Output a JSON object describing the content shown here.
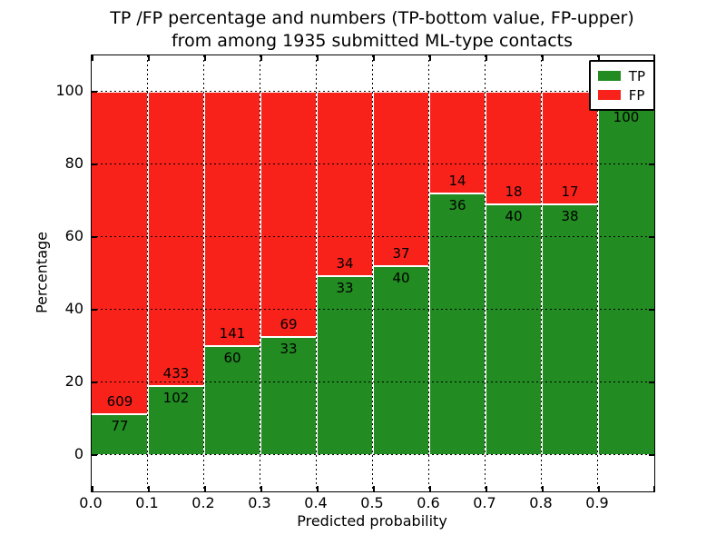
{
  "chart_data": {
    "type": "bar",
    "stacked": true,
    "normalized": "percent",
    "title_line1": "TP /FP percentage and numbers (TP-bottom value, FP-upper)",
    "title_line2": "from among 1935 submitted ML-type contacts",
    "title": "TP /FP percentage and numbers (TP-bottom value, FP-upper) from among 1935 submitted ML-type contacts",
    "total_contacts": 1935,
    "xlabel": "Predicted probability",
    "ylabel": "Percentage",
    "xlim": [
      0.0,
      1.0
    ],
    "ylim": [
      -10,
      110
    ],
    "xticks": [
      "0.0",
      "0.1",
      "0.2",
      "0.3",
      "0.4",
      "0.5",
      "0.6",
      "0.7",
      "0.8",
      "0.9"
    ],
    "yticks": [
      0,
      20,
      40,
      60,
      80,
      100
    ],
    "grid": true,
    "grid_style": "dotted",
    "legend": {
      "position": "upper right",
      "entries": [
        {
          "label": "TP",
          "color": "#228b22"
        },
        {
          "label": "FP",
          "color": "#f8221b"
        }
      ]
    },
    "colors": {
      "tp": "#228b22",
      "fp": "#f8221b",
      "bar_edge": "#ffffff"
    },
    "bars": [
      {
        "bin_start": 0.0,
        "bin_end": 0.1,
        "tp_count": 77,
        "fp_count": 609,
        "tp_pct": 11.2
      },
      {
        "bin_start": 0.1,
        "bin_end": 0.2,
        "tp_count": 102,
        "fp_count": 433,
        "tp_pct": 19.1
      },
      {
        "bin_start": 0.2,
        "bin_end": 0.3,
        "tp_count": 60,
        "fp_count": 141,
        "tp_pct": 29.9
      },
      {
        "bin_start": 0.3,
        "bin_end": 0.4,
        "tp_count": 33,
        "fp_count": 69,
        "tp_pct": 32.4
      },
      {
        "bin_start": 0.4,
        "bin_end": 0.5,
        "tp_count": 33,
        "fp_count": 34,
        "tp_pct": 49.3
      },
      {
        "bin_start": 0.5,
        "bin_end": 0.6,
        "tp_count": 40,
        "fp_count": 37,
        "tp_pct": 51.9
      },
      {
        "bin_start": 0.6,
        "bin_end": 0.7,
        "tp_count": 36,
        "fp_count": 14,
        "tp_pct": 72.0
      },
      {
        "bin_start": 0.7,
        "bin_end": 0.8,
        "tp_count": 40,
        "fp_count": 18,
        "tp_pct": 69.0
      },
      {
        "bin_start": 0.8,
        "bin_end": 0.9,
        "tp_count": 38,
        "fp_count": 17,
        "tp_pct": 69.1
      },
      {
        "bin_start": 0.9,
        "bin_end": 1.0,
        "tp_count": 100,
        "fp_count": null,
        "tp_pct": 96.2
      }
    ]
  }
}
